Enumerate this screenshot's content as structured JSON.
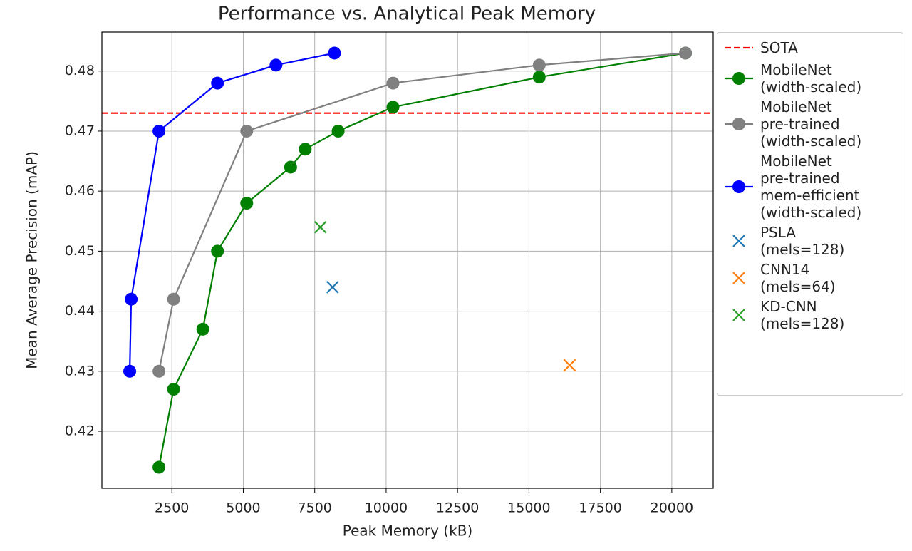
{
  "chart_data": {
    "type": "line",
    "title": "Performance vs. Analytical Peak Memory",
    "x_label": "Peak Memory (kB)",
    "y_label": "Mean Average Precision (mAP)",
    "xlim": [
      50,
      21450
    ],
    "ylim": [
      0.4105,
      0.4865
    ],
    "xticks": [
      2500,
      5000,
      7500,
      10000,
      12500,
      15000,
      17500,
      20000
    ],
    "yticks": [
      0.42,
      0.43,
      0.44,
      0.45,
      0.46,
      0.47,
      0.48
    ],
    "grid": true,
    "legend": "outside right",
    "reference_lines": [
      {
        "name": "SOTA",
        "color": "#ff0000",
        "value": 0.473
      }
    ],
    "series": [
      {
        "name": "MobileNet\n(width-scaled)",
        "color": "#008000",
        "marker": "o",
        "x": [
          2048,
          2560,
          3584,
          4096,
          5120,
          6656,
          7168,
          8320,
          10240,
          15360,
          20480
        ],
        "values": [
          0.414,
          0.427,
          0.437,
          0.45,
          0.458,
          0.464,
          0.467,
          0.47,
          0.474,
          0.479,
          0.483
        ]
      },
      {
        "name": "MobileNet\npre-trained\n(width-scaled)",
        "color": "#808080",
        "marker": "o",
        "x": [
          2048,
          2560,
          5120,
          10240,
          15360,
          20480
        ],
        "values": [
          0.43,
          0.442,
          0.47,
          0.478,
          0.481,
          0.483
        ]
      },
      {
        "name": "MobileNet\npre-trained\nmem-efficient\n(width-scaled)",
        "color": "#0000ff",
        "marker": "o",
        "x": [
          1024,
          1075,
          2048,
          4096,
          6144,
          8192
        ],
        "values": [
          0.43,
          0.442,
          0.47,
          0.478,
          0.481,
          0.483
        ]
      },
      {
        "name": "PSLA\n(mels=128)",
        "color": "#1f77b4",
        "marker": "x",
        "x": [
          8125
        ],
        "values": [
          0.444
        ]
      },
      {
        "name": "CNN14\n(mels=64)",
        "color": "#ff7f0e",
        "marker": "x",
        "x": [
          16425
        ],
        "values": [
          0.431
        ]
      },
      {
        "name": "KD-CNN\n(mels=128)",
        "color": "#2ca02c",
        "marker": "x",
        "x": [
          7700
        ],
        "values": [
          0.454
        ]
      }
    ]
  }
}
